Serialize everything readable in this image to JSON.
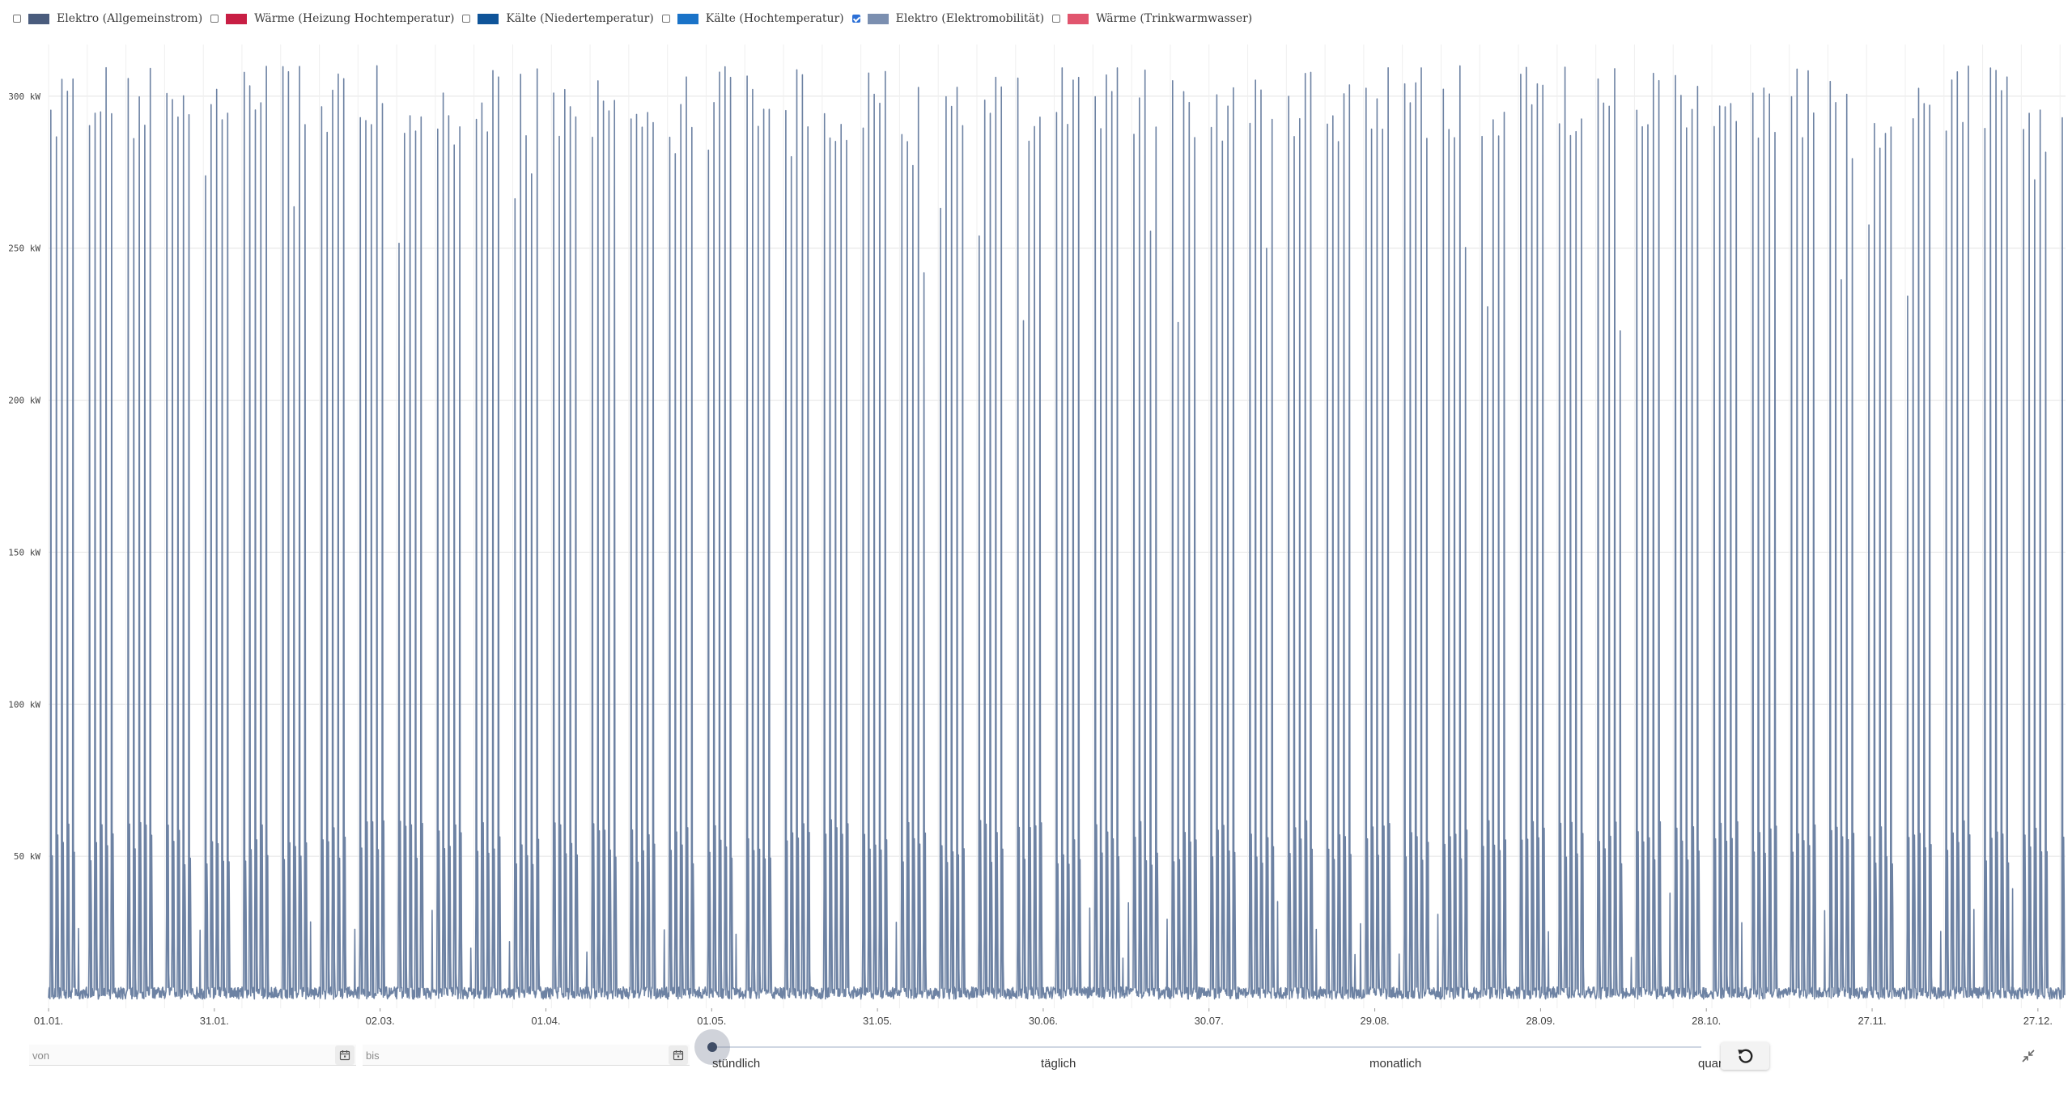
{
  "legend": [
    {
      "label": "Elektro (Allgemeinstrom)",
      "color": "#4a5c7d",
      "checked": false
    },
    {
      "label": "Wärme (Heizung Hochtemperatur)",
      "color": "#c81e44",
      "checked": false
    },
    {
      "label": "Kälte (Niedertemperatur)",
      "color": "#0f5499",
      "checked": false
    },
    {
      "label": "Kälte (Hochtemperatur)",
      "color": "#1a73c8",
      "checked": false
    },
    {
      "label": "Elektro (Elektromobilität)",
      "color": "#7b8fb0",
      "checked": true
    },
    {
      "label": "Wärme (Trinkwarmwasser)",
      "color": "#e1556e",
      "checked": false
    }
  ],
  "chart_data": {
    "type": "line",
    "series": [
      {
        "name": "Elektro (Elektromobilität)",
        "color": "#6d82a3"
      }
    ],
    "y_ticks": [
      "50 kW",
      "100 kW",
      "150 kW",
      "200 kW",
      "250 kW",
      "300 kW"
    ],
    "y_tick_values": [
      50,
      100,
      150,
      200,
      250,
      300
    ],
    "ylim": [
      0,
      317
    ],
    "x_ticks": [
      "01.01.",
      "31.01.",
      "02.03.",
      "01.04.",
      "01.05.",
      "31.05.",
      "30.06.",
      "30.07.",
      "29.08.",
      "28.09.",
      "28.10.",
      "27.11.",
      "27.12."
    ],
    "x_tick_days": [
      0,
      30,
      60,
      90,
      120,
      150,
      180,
      210,
      240,
      270,
      300,
      330,
      360
    ],
    "xlim_days": [
      0,
      365
    ],
    "grid": true,
    "pattern": "Daily charging peaks on weekdays reaching about 300–315 kW, with secondary peaks around 35–65 kW and near-zero baseline overnight and on weekends",
    "peaks_per_week": 5,
    "typical_peak_kw": 310,
    "secondary_peak_kw": 62,
    "baseline_kw": 3
  },
  "filters": {
    "from_placeholder": "von",
    "to_placeholder": "bis"
  },
  "granularity": {
    "options": [
      "stündlich",
      "täglich",
      "monatlich",
      "quar"
    ],
    "selected": "stündlich"
  },
  "icons": {
    "calendar": "calendar-icon",
    "reset": "reset-icon",
    "collapse": "collapse-icon"
  }
}
